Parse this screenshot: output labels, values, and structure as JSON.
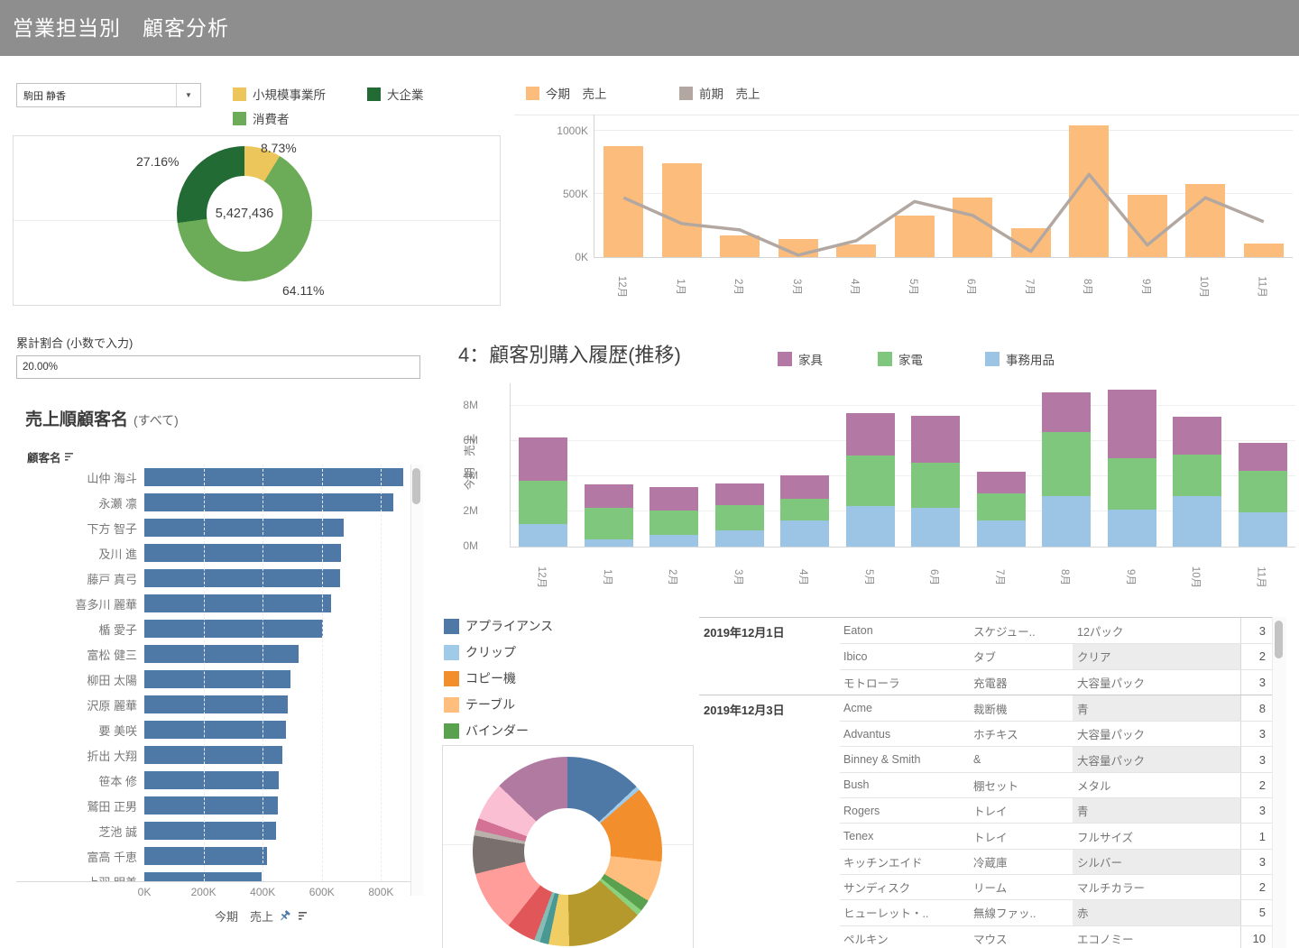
{
  "header": {
    "title": "営業担当別　顧客分析"
  },
  "icons": {
    "dropdown_caret": "▼"
  },
  "rep_filter": {
    "value": "駒田 静香"
  },
  "segment_legend": {
    "items": [
      {
        "label": "小規模事業所",
        "color": "#ecc65a"
      },
      {
        "label": "大企業",
        "color": "#226b35"
      },
      {
        "label": "消費者",
        "color": "#6cab58"
      }
    ]
  },
  "cumulative_filter": {
    "label": "累計割合 (小数で入力)",
    "value": "20.00%"
  },
  "charts": {
    "segment_donut": {
      "type": "pie",
      "center_total": "5,427,436",
      "slices": [
        {
          "label": "小規模事業所",
          "pct": 8.73,
          "color": "#ecc65a"
        },
        {
          "label": "消費者",
          "pct": 64.11,
          "color": "#6cab58"
        },
        {
          "label": "大企業",
          "pct": 27.16,
          "color": "#226b35"
        }
      ],
      "labels": {
        "small_business": "8.73%",
        "consumer": "64.11%",
        "enterprise": "27.16%"
      }
    },
    "monthly_sales": {
      "type": "bar+line",
      "legend": [
        {
          "label": "今期　売上",
          "color": "#fcbd7c"
        },
        {
          "label": "前期　売上",
          "color": "#b3a8a1"
        }
      ],
      "months": [
        "12月",
        "1月",
        "2月",
        "3月",
        "4月",
        "5月",
        "6月",
        "7月",
        "8月",
        "9月",
        "10月",
        "11月"
      ],
      "y_ticks": [
        "1000K",
        "500K",
        "0K"
      ],
      "bars_k": [
        880,
        740,
        170,
        140,
        100,
        330,
        470,
        230,
        1045,
        495,
        580,
        105
      ],
      "line_k": [
        470,
        265,
        215,
        15,
        130,
        440,
        330,
        45,
        655,
        95,
        470,
        280
      ]
    },
    "customer_bars": {
      "type": "bar",
      "title": "売上順顧客名",
      "subtitle": "(すべて)",
      "col_header": "顧客名",
      "axis_label": "今期　売上",
      "x_ticks": [
        "0K",
        "200K",
        "400K",
        "600K",
        "800K"
      ],
      "names": [
        "山仲 海斗",
        "永瀬 凛",
        "下方 智子",
        "及川 進",
        "藤戸 真弓",
        "喜多川 麗華",
        "楯 愛子",
        "富松 健三",
        "柳田 太陽",
        "沢原 麗華",
        "要 美咲",
        "折出 大翔",
        "笹本 修",
        "鷲田 正男",
        "芝池 誠",
        "富高 千恵",
        "上羽 明美"
      ],
      "values_k": [
        875,
        840,
        675,
        665,
        660,
        630,
        605,
        520,
        495,
        485,
        480,
        465,
        455,
        450,
        445,
        415,
        395
      ]
    },
    "purchase_history": {
      "type": "stacked-bar",
      "title": "4：顧客別購入履歴(推移)",
      "ylabel": "今期　売上",
      "legend": [
        {
          "label": "家具",
          "color": "#b379a4"
        },
        {
          "label": "家電",
          "color": "#7fc77c"
        },
        {
          "label": "事務用品",
          "color": "#9cc4e4"
        }
      ],
      "months": [
        "12月",
        "1月",
        "2月",
        "3月",
        "4月",
        "5月",
        "6月",
        "7月",
        "8月",
        "9月",
        "10月",
        "11月"
      ],
      "y_ticks": [
        "8M",
        "6M",
        "4M",
        "2M",
        "0M"
      ],
      "series": [
        {
          "name": "事務用品",
          "color": "#9cc4e4",
          "values_m": [
            1.3,
            0.4,
            0.65,
            0.95,
            1.5,
            2.3,
            2.2,
            1.5,
            2.9,
            2.1,
            2.9,
            1.95
          ]
        },
        {
          "name": "家電",
          "color": "#7fc77c",
          "values_m": [
            2.45,
            1.8,
            1.4,
            1.4,
            1.2,
            2.9,
            2.55,
            1.55,
            3.6,
            2.95,
            2.35,
            2.35
          ]
        },
        {
          "name": "家具",
          "color": "#b379a4",
          "values_m": [
            2.45,
            1.35,
            1.35,
            1.25,
            1.35,
            2.4,
            2.7,
            1.2,
            2.25,
            3.85,
            2.15,
            1.6
          ]
        }
      ]
    },
    "category_pie": {
      "type": "pie",
      "legend": [
        {
          "label": "アプライアンス",
          "color": "#4e79a7"
        },
        {
          "label": "クリップ",
          "color": "#a0cbe8"
        },
        {
          "label": "コピー機",
          "color": "#f28e2b"
        },
        {
          "label": "テーブル",
          "color": "#ffbe7d"
        },
        {
          "label": "バインダー",
          "color": "#59a14f"
        }
      ],
      "slices": [
        {
          "color": "#4e79a7",
          "pct": 13
        },
        {
          "color": "#a0cbe8",
          "pct": 0.7
        },
        {
          "color": "#f28e2b",
          "pct": 13
        },
        {
          "color": "#ffbe7d",
          "pct": 7
        },
        {
          "color": "#59a14f",
          "pct": 2
        },
        {
          "color": "#8cd17d",
          "pct": 1
        },
        {
          "color": "#b6992d",
          "pct": 13
        },
        {
          "color": "#f1ce63",
          "pct": 3.5
        },
        {
          "color": "#499894",
          "pct": 1.5
        },
        {
          "color": "#86bcb6",
          "pct": 1
        },
        {
          "color": "#e15759",
          "pct": 5
        },
        {
          "color": "#ff9d9a",
          "pct": 10.5
        },
        {
          "color": "#79706e",
          "pct": 6.5
        },
        {
          "color": "#bab0ac",
          "pct": 1
        },
        {
          "color": "#d37295",
          "pct": 2
        },
        {
          "color": "#fabfd2",
          "pct": 6.5
        },
        {
          "color": "#b07aa1",
          "pct": 12.8
        }
      ]
    }
  },
  "purchase_table": {
    "groups": [
      {
        "date": "2019年12月1日",
        "rows": [
          [
            "Eaton",
            "スケジュー..",
            "12パック",
            "3"
          ],
          [
            "Ibico",
            "タブ",
            "クリア",
            "2"
          ],
          [
            "モトローラ",
            "充電器",
            "大容量パック",
            "3"
          ]
        ]
      },
      {
        "date": "2019年12月3日",
        "rows": [
          [
            "Acme",
            "裁断機",
            "青",
            "8"
          ],
          [
            "Advantus",
            "ホチキス",
            "大容量パック",
            "3"
          ],
          [
            "Binney & Smith",
            "&",
            "大容量パック",
            "3"
          ],
          [
            "Bush",
            "棚セット",
            "メタル",
            "2"
          ],
          [
            "Rogers",
            "トレイ",
            "青",
            "3"
          ],
          [
            "Tenex",
            "トレイ",
            "フルサイズ",
            "1"
          ],
          [
            "キッチンエイド",
            "冷蔵庫",
            "シルバー",
            "3"
          ],
          [
            "サンディスク",
            "リーム",
            "マルチカラー",
            "2"
          ],
          [
            "ヒューレット・..",
            "無線ファッ..",
            "赤",
            "5"
          ],
          [
            "ペルキン",
            "マウス",
            "エコノミー",
            "10"
          ]
        ]
      }
    ]
  }
}
